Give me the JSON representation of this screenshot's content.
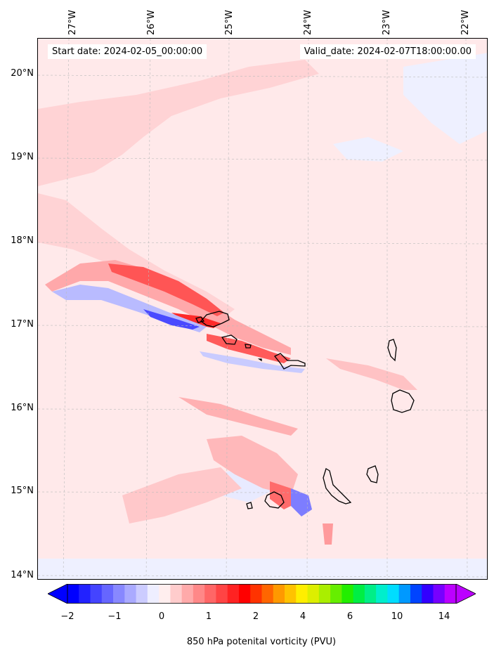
{
  "header": {
    "start_date": "Start date: 2024-02-05_00:00:00",
    "valid_date": "Valid_date: 2024-02-07T18:00:00.00"
  },
  "axes": {
    "lon_labels": [
      "27°W",
      "26°W",
      "25°W",
      "24°W",
      "23°W",
      "22°W"
    ],
    "lat_labels": [
      "20°N",
      "19°N",
      "18°N",
      "17°N",
      "16°N",
      "15°N",
      "14°N"
    ]
  },
  "colorbar": {
    "label": "850 hPa potenital vorticity (PVU)",
    "tick_labels": [
      "−2",
      "−1",
      "0",
      "1",
      "2",
      "4",
      "6",
      "10",
      "14"
    ],
    "colors": [
      "#0000ff",
      "#2222ff",
      "#4444ff",
      "#6666ff",
      "#8888ff",
      "#aaaaff",
      "#ccccff",
      "#eeeeff",
      "#ffeeee",
      "#ffcccc",
      "#ffaaaa",
      "#ff8888",
      "#ff6666",
      "#ff4444",
      "#ff2222",
      "#ff0000",
      "#ff3300",
      "#ff6600",
      "#ff9900",
      "#ffc200",
      "#ffee00",
      "#ddee00",
      "#aaee00",
      "#66ee00",
      "#22ee00",
      "#00ee44",
      "#00ee88",
      "#00eecc",
      "#00ddff",
      "#0099ff",
      "#0044ff",
      "#3300ff",
      "#7700ff",
      "#bb00ff"
    ]
  },
  "map": {
    "background_color": "#ffe9ea",
    "positive_color": "#ffcfd1",
    "strong_positive_color": "#ff2a2a",
    "negative_color": "#e6e8ff",
    "strong_negative_color": "#4a4aff",
    "coastline_color": "#000000"
  }
}
